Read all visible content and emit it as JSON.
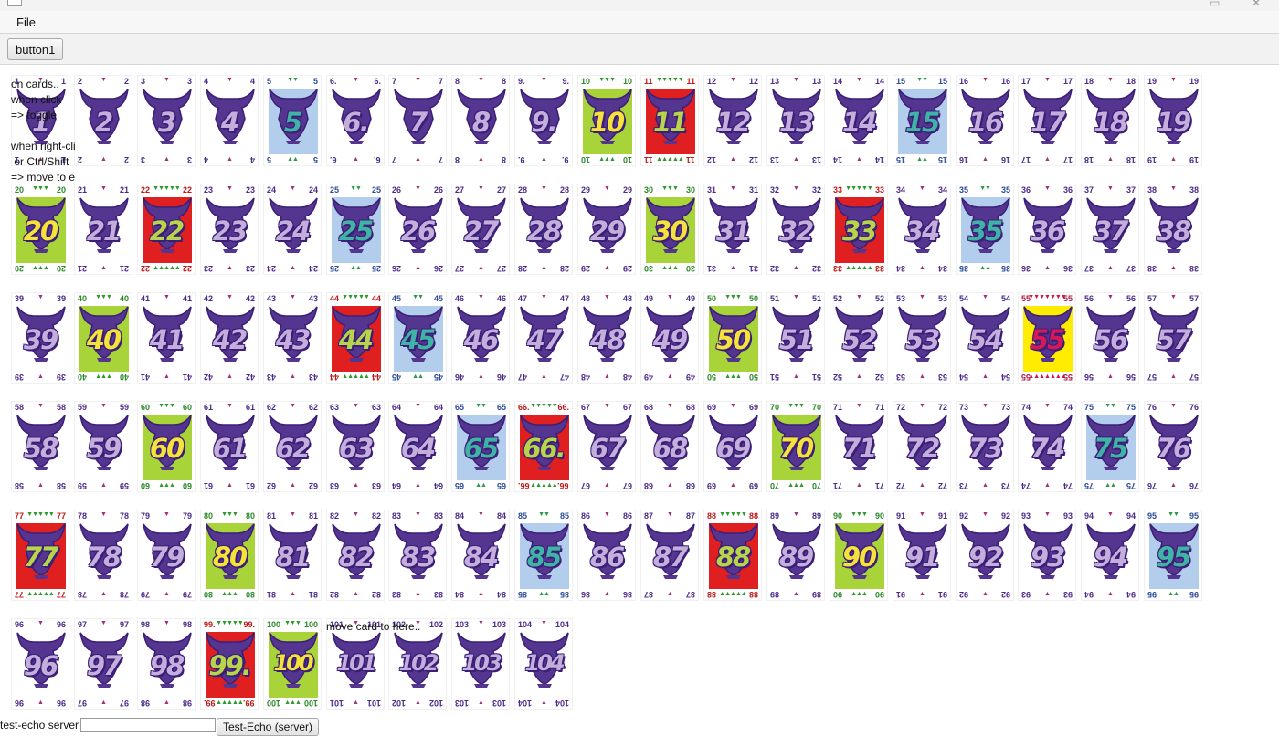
{
  "menu": {
    "file_label": "File"
  },
  "toolbar": {
    "button1_label": "button1"
  },
  "instructions": "on cards..\nwhen click\n=> toggle\n\nwhen right-click\n or Ctrl/Shift\n=> move to end",
  "drop_hint": "move card to here..",
  "echo": {
    "label": "test-echo server",
    "value": "",
    "button_label": "Test-Echo (server)"
  },
  "colors": {
    "blue": "#b3cdec",
    "green": "#a8d43a",
    "red": "#e02020",
    "yellow": "#ffec00",
    "bull": "#54358f",
    "outline": "#3b1f77"
  },
  "cards": [
    1,
    2,
    3,
    4,
    5,
    6,
    7,
    8,
    9,
    10,
    11,
    12,
    13,
    14,
    15,
    16,
    17,
    18,
    19,
    20,
    21,
    22,
    23,
    24,
    25,
    26,
    27,
    28,
    29,
    30,
    31,
    32,
    33,
    34,
    35,
    36,
    37,
    38,
    39,
    40,
    41,
    42,
    43,
    44,
    45,
    46,
    47,
    48,
    49,
    50,
    51,
    52,
    53,
    54,
    55,
    56,
    57,
    58,
    59,
    60,
    61,
    62,
    63,
    64,
    65,
    66,
    67,
    68,
    69,
    70,
    71,
    72,
    73,
    74,
    75,
    76,
    77,
    78,
    79,
    80,
    81,
    82,
    83,
    84,
    85,
    86,
    87,
    88,
    89,
    90,
    91,
    92,
    93,
    94,
    95,
    96,
    97,
    98,
    99,
    100,
    101,
    102,
    103,
    104
  ]
}
